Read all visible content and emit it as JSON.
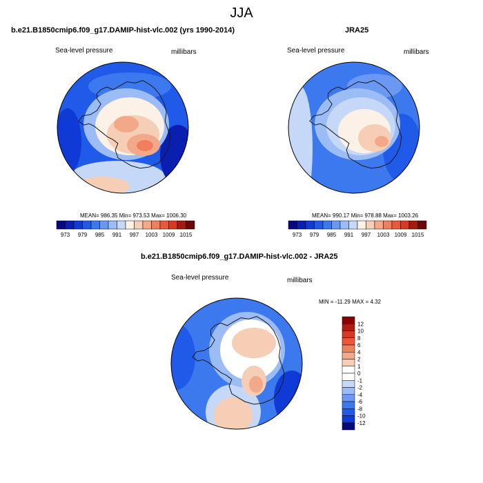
{
  "title": "JJA",
  "colors": {
    "palette": [
      "#08087a",
      "#0a1fb0",
      "#0f3ad6",
      "#1f5ae8",
      "#3c78ee",
      "#6a98f2",
      "#9bbcf5",
      "#c6d8f7",
      "#fbf1e6",
      "#f6cdb5",
      "#f3a889",
      "#ef7f5e",
      "#e9583a",
      "#d63a22",
      "#a51b10",
      "#6b0808"
    ],
    "coast": "#1a1a1a",
    "rim": "#000000"
  },
  "chart_data": [
    {
      "type": "heatmap",
      "name": "model-panel",
      "title": "b.e21.B1850cmip6.f09_g17.DAMIP-hist-vlc.002 (yrs 1990-2014)",
      "field_label": "Sea-level pressure",
      "units": "millibars",
      "stats": "MEAN= 986.35   Min= 973.53   Max= 1006.30",
      "mean": 986.35,
      "min": 973.53,
      "max": 1006.3,
      "colorbar_ticks": [
        "973",
        "979",
        "985",
        "991",
        "997",
        "1003",
        "1009",
        "1015"
      ]
    },
    {
      "type": "heatmap",
      "name": "obs-panel",
      "title": "JRA25",
      "field_label": "Sea-level pressure",
      "units": "millibars",
      "stats": "MEAN= 990.17   Min= 978.88   Max= 1003.26",
      "mean": 990.17,
      "min": 978.88,
      "max": 1003.26,
      "colorbar_ticks": [
        "973",
        "979",
        "985",
        "991",
        "997",
        "1003",
        "1009",
        "1015"
      ]
    },
    {
      "type": "heatmap",
      "name": "difference-panel",
      "title": "b.e21.B1850cmip6.f09_g17.DAMIP-hist-vlc.002 - JRA25",
      "field_label": "Sea-level pressure",
      "units": "millibars",
      "stats": "MIN = -11.29  MAX =   4.32",
      "min": -11.29,
      "max": 4.32,
      "colorbar_ticks": [
        "12",
        "10",
        "8",
        "6",
        "4",
        "2",
        "1",
        "0",
        "-1",
        "-2",
        "-4",
        "-6",
        "-8",
        "-10",
        "-12"
      ]
    }
  ]
}
